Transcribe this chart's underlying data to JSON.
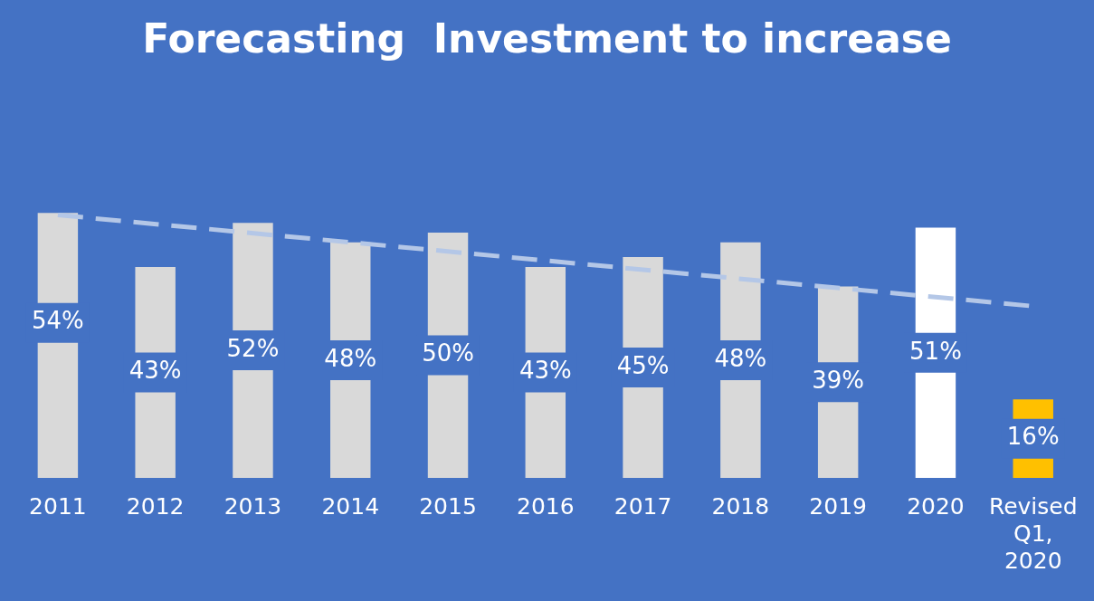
{
  "chart_data": {
    "type": "bar",
    "title": "Forecasting  Investment to increase",
    "categories": [
      "2011",
      "2012",
      "2013",
      "2014",
      "2015",
      "2016",
      "2017",
      "2018",
      "2019",
      "2020",
      "Revised Q1, 2020"
    ],
    "series": [
      {
        "colors": [
          "#d9d9d9",
          "#d9d9d9",
          "#d9d9d9",
          "#d9d9d9",
          "#d9d9d9",
          "#d9d9d9",
          "#d9d9d9",
          "#d9d9d9",
          "#d9d9d9",
          "#ffffff",
          "#ffc000"
        ],
        "values": [
          54,
          43,
          52,
          48,
          50,
          43,
          45,
          48,
          39,
          51,
          16
        ],
        "value_labels": [
          "54%",
          "43%",
          "52%",
          "48%",
          "50%",
          "43%",
          "45%",
          "48%",
          "39%",
          "51%",
          "16%"
        ]
      },
      {
        "type": "line",
        "color": "#b4c7e7",
        "line_style": "dashed",
        "marker": "none",
        "values": [
          53.6,
          null,
          null,
          null,
          null,
          null,
          null,
          null,
          null,
          null,
          35
        ]
      }
    ],
    "grid": false,
    "legend": false
  }
}
